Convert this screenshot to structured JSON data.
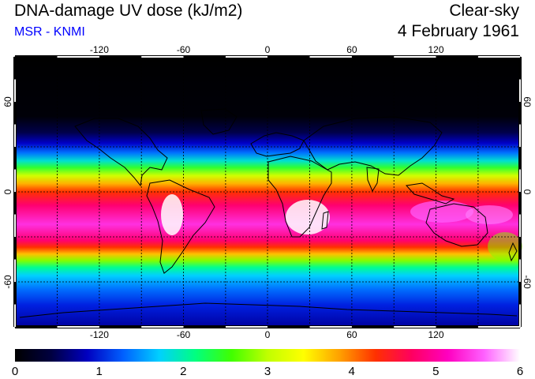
{
  "header": {
    "title": "DNA-damage UV dose (kJ/m2)",
    "source": "MSR - KNMI",
    "mode": "Clear-sky",
    "date": "4 February 1961"
  },
  "map": {
    "lon_ticks": [
      "-120",
      "-60",
      "0",
      "60",
      "120"
    ],
    "lat_ticks_left": [
      "60",
      "0",
      "-60"
    ],
    "lat_ticks_right": [
      "60",
      "0",
      "-60"
    ]
  },
  "colorbar": {
    "labels": [
      "0",
      "1",
      "2",
      "3",
      "4",
      "5",
      "6"
    ],
    "colors": [
      "#000000",
      "#000040",
      "#0000c0",
      "#0060ff",
      "#00d0ff",
      "#00ff80",
      "#40ff00",
      "#c0ff00",
      "#ffff00",
      "#ffa000",
      "#ff3000",
      "#ff0060",
      "#ff00c0",
      "#ff60ff",
      "#ffffff"
    ]
  },
  "colors": {
    "title_text": "#000000",
    "source_text": "#0000ff"
  }
}
